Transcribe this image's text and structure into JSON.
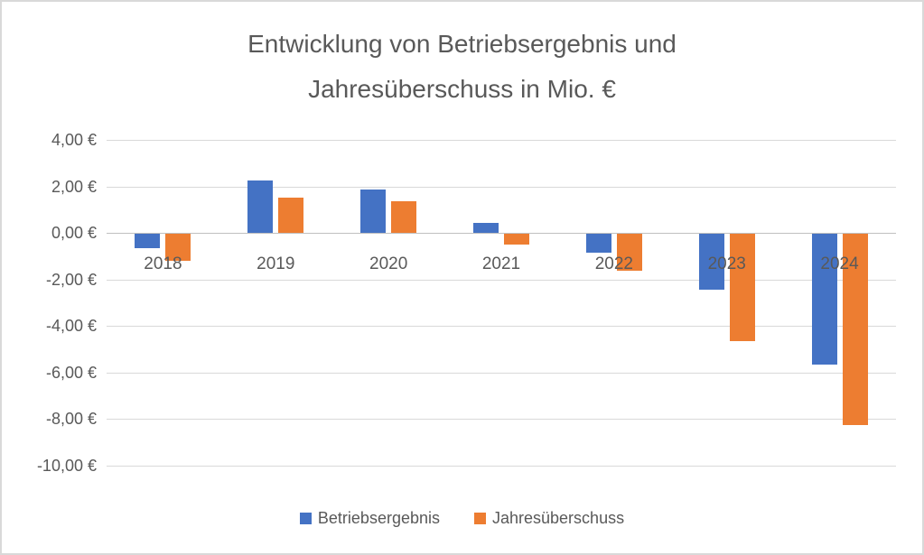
{
  "chart_data": {
    "type": "bar",
    "title": "Entwicklung von Betriebsergebnis und Jahresüberschuss in Mio. €",
    "title_lines": [
      "Entwicklung von Betriebsergebnis und",
      "Jahresüberschuss in Mio. €"
    ],
    "categories": [
      "2018",
      "2019",
      "2020",
      "2021",
      "2022",
      "2023",
      "2024"
    ],
    "series": [
      {
        "name": "Betriebsergebnis",
        "color": "#4472C4",
        "values": [
          -0.6,
          2.25,
          1.85,
          0.45,
          -0.8,
          -2.4,
          -5.6
        ]
      },
      {
        "name": "Jahresüberschuss",
        "color": "#ED7D31",
        "values": [
          -1.15,
          1.5,
          1.35,
          -0.45,
          -1.6,
          -4.6,
          -8.2
        ]
      }
    ],
    "y_axis": {
      "min": -10,
      "max": 4,
      "step": 2,
      "tick_labels": [
        "4,00 €",
        "2,00 €",
        "0,00 €",
        "-2,00 €",
        "-4,00 €",
        "-6,00 €",
        "-8,00 €",
        "-10,00 €"
      ]
    },
    "legend": {
      "position": "bottom",
      "entries": [
        "Betriebsergebnis",
        "Jahresüberschuss"
      ]
    },
    "grid": true
  },
  "styles": {
    "series_colors": {
      "betriebsergebnis": "#4472C4",
      "jahresueberschuss": "#ED7D31"
    },
    "text_color": "#595959",
    "gridline_color": "#D9D9D9",
    "axis_line_color": "#C0C0C0",
    "frame_border_color": "#D9D9D9",
    "background": "#FFFFFF"
  }
}
